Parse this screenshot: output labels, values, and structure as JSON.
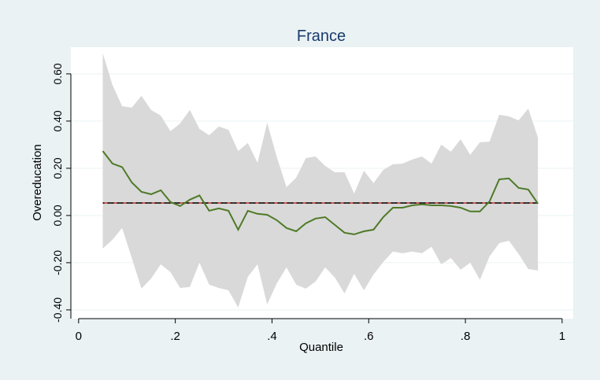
{
  "chart_data": {
    "type": "line",
    "title": "France",
    "x_label": "Quantile",
    "y_label": "Overeducation",
    "x": [
      0.05,
      0.07,
      0.09,
      0.11,
      0.13,
      0.15,
      0.17,
      0.19,
      0.21,
      0.23,
      0.25,
      0.27,
      0.29,
      0.31,
      0.33,
      0.35,
      0.37,
      0.39,
      0.41,
      0.43,
      0.45,
      0.47,
      0.49,
      0.51,
      0.53,
      0.55,
      0.57,
      0.59,
      0.61,
      0.63,
      0.65,
      0.67,
      0.69,
      0.71,
      0.73,
      0.75,
      0.77,
      0.79,
      0.81,
      0.83,
      0.85,
      0.87,
      0.89,
      0.91,
      0.93,
      0.95
    ],
    "series": [
      {
        "color": "#4e7a27",
        "values": [
          0.273,
          0.22,
          0.205,
          0.14,
          0.1,
          0.09,
          0.107,
          0.057,
          0.04,
          0.067,
          0.085,
          0.02,
          0.03,
          0.02,
          -0.06,
          0.02,
          0.007,
          0.003,
          -0.02,
          -0.053,
          -0.067,
          -0.033,
          -0.013,
          -0.007,
          -0.04,
          -0.073,
          -0.08,
          -0.067,
          -0.06,
          -0.007,
          0.033,
          0.033,
          0.043,
          0.047,
          0.043,
          0.043,
          0.04,
          0.033,
          0.017,
          0.017,
          0.06,
          0.153,
          0.157,
          0.117,
          0.11,
          0.05
        ]
      }
    ],
    "band": {
      "color": "#d9d9d9",
      "upper": [
        0.687,
        0.553,
        0.463,
        0.457,
        0.507,
        0.447,
        0.423,
        0.357,
        0.39,
        0.447,
        0.367,
        0.34,
        0.377,
        0.363,
        0.273,
        0.307,
        0.223,
        0.393,
        0.247,
        0.12,
        0.16,
        0.243,
        0.25,
        0.21,
        0.183,
        0.183,
        0.093,
        0.19,
        0.137,
        0.193,
        0.217,
        0.22,
        0.237,
        0.25,
        0.22,
        0.3,
        0.27,
        0.323,
        0.257,
        0.31,
        0.313,
        0.427,
        0.42,
        0.403,
        0.453,
        0.33
      ],
      "lower": [
        -0.14,
        -0.103,
        -0.053,
        -0.18,
        -0.31,
        -0.267,
        -0.207,
        -0.24,
        -0.307,
        -0.303,
        -0.2,
        -0.293,
        -0.307,
        -0.317,
        -0.39,
        -0.26,
        -0.207,
        -0.377,
        -0.287,
        -0.22,
        -0.293,
        -0.31,
        -0.28,
        -0.22,
        -0.263,
        -0.33,
        -0.247,
        -0.317,
        -0.25,
        -0.197,
        -0.153,
        -0.16,
        -0.153,
        -0.16,
        -0.133,
        -0.207,
        -0.18,
        -0.23,
        -0.2,
        -0.273,
        -0.173,
        -0.117,
        -0.107,
        -0.163,
        -0.227,
        -0.233
      ]
    },
    "reference_line": {
      "value": 0.053,
      "colors": [
        "#c0392b",
        "#000000"
      ]
    },
    "xlim": [
      -0.016,
      1.023
    ],
    "ylim": [
      -0.437,
      0.713
    ],
    "xticks": [
      0,
      {
        "value": 0.2,
        "label": ".2"
      },
      {
        "value": 0.4,
        "label": ".4"
      },
      {
        "value": 0.6,
        "label": ".6"
      },
      {
        "value": 0.8,
        "label": ".8"
      },
      1
    ],
    "yticks": [
      {
        "value": -0.4,
        "label": "-0.40"
      },
      {
        "value": -0.2,
        "label": "-0.20"
      },
      {
        "value": 0,
        "label": "0.00"
      },
      {
        "value": 0.2,
        "label": "0.20"
      },
      {
        "value": 0.4,
        "label": "0.40"
      },
      {
        "value": 0.6,
        "label": "0.60"
      }
    ],
    "grid": true
  }
}
